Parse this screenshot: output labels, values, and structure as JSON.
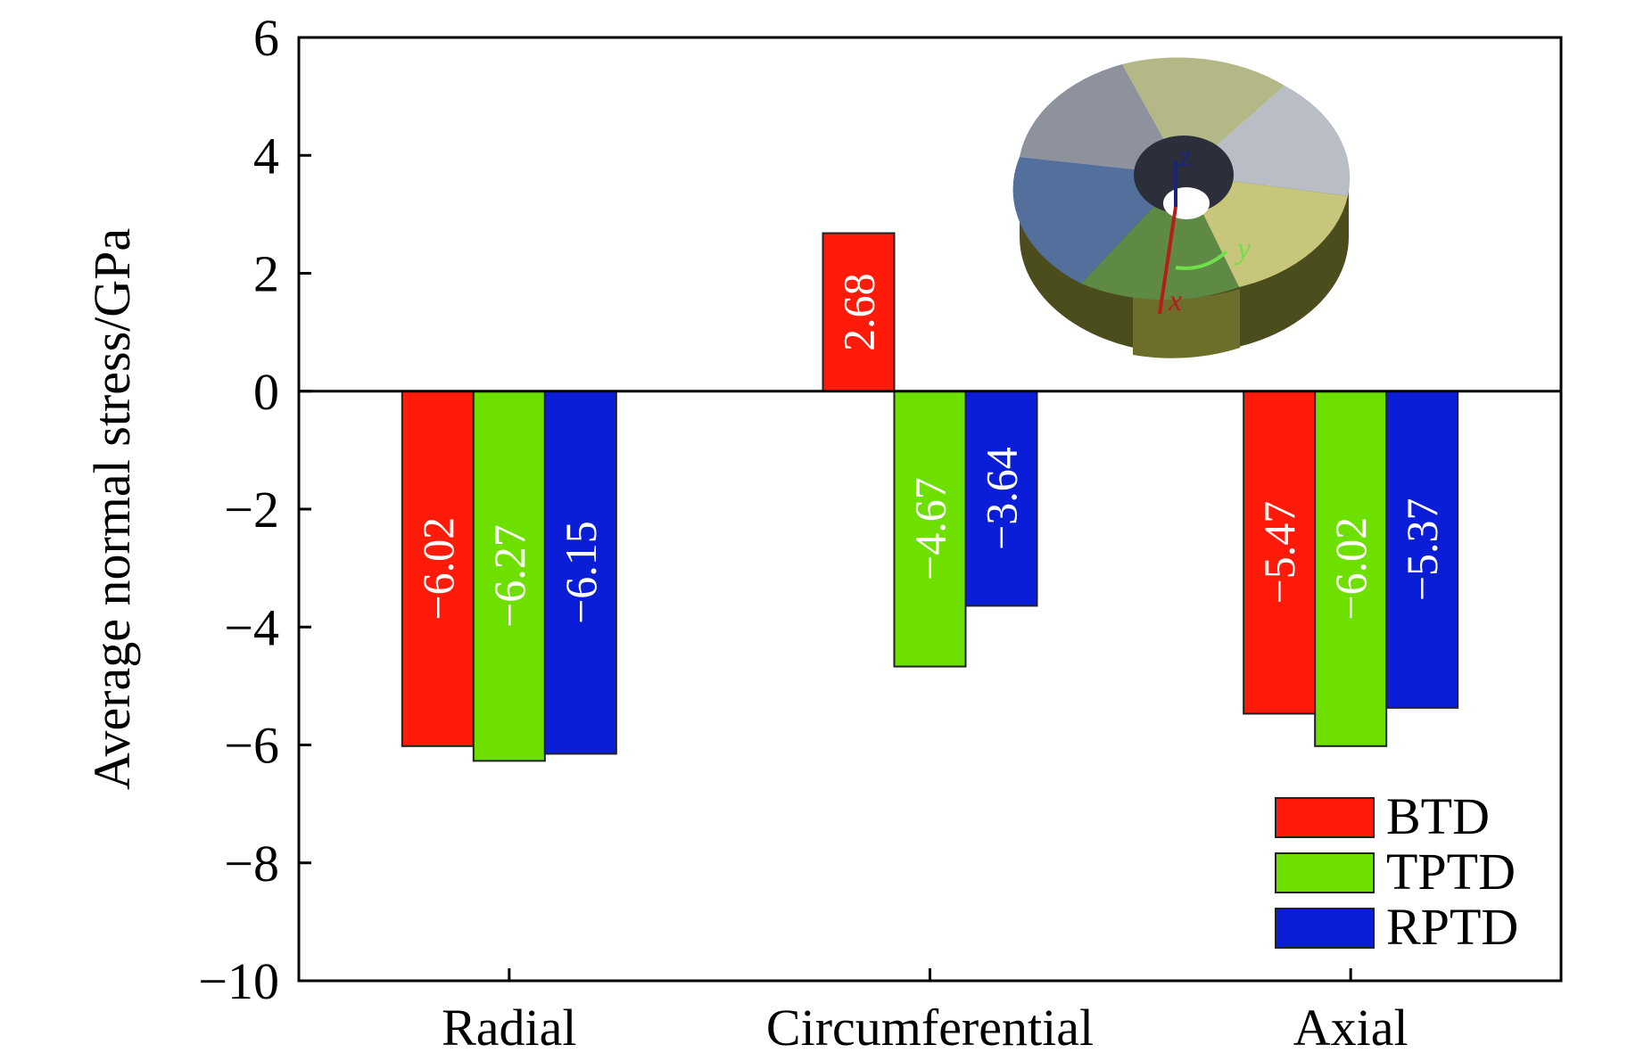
{
  "chart_data": {
    "type": "bar",
    "categories": [
      "Radial",
      "Circumferential",
      "Axial"
    ],
    "series": [
      {
        "name": "BTD",
        "color": "#ff1a0a",
        "values": [
          -6.02,
          2.68,
          -5.47
        ]
      },
      {
        "name": "TPTD",
        "color": "#6ee000",
        "values": [
          -6.27,
          -4.67,
          -6.02
        ]
      },
      {
        "name": "RPTD",
        "color": "#0a1ed8",
        "values": [
          -6.15,
          -3.64,
          -5.37
        ]
      }
    ],
    "bar_labels": [
      [
        "−6.02",
        "2.68",
        "−5.47"
      ],
      [
        "−6.27",
        "−4.67",
        "−6.02"
      ],
      [
        "−6.15",
        "−3.64",
        "−5.37"
      ]
    ],
    "ylabel": "Average normal stress/GPa",
    "xlabel": "",
    "ylim": [
      -10,
      6
    ],
    "yticks": [
      6,
      4,
      2,
      0,
      -2,
      -4,
      -6,
      -8,
      -10
    ],
    "ytick_labels": [
      "6",
      "4",
      "2",
      "0",
      "−2",
      "−4",
      "−6",
      "−8",
      "−10"
    ],
    "legend_position": "bottom-right",
    "inset": {
      "description": "3D ring model",
      "axes": [
        {
          "label": "z",
          "color": "#1a237e"
        },
        {
          "label": "y",
          "color": "#6ee04a"
        },
        {
          "label": "x",
          "color": "#b71c1c"
        }
      ]
    }
  }
}
